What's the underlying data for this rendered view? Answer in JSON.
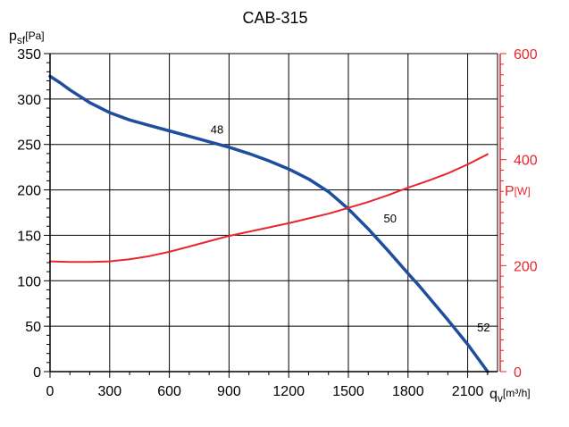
{
  "chart_data": {
    "type": "line",
    "title": "CAB-315",
    "x_axis": {
      "label_main": "q",
      "label_sub": "v",
      "label_unit": "[m³/h]",
      "range": [
        0,
        2250
      ],
      "ticks": [
        0,
        300,
        600,
        900,
        1200,
        1500,
        1800,
        2100
      ],
      "minor_step": 100
    },
    "y_axis_left": {
      "label_main": "p",
      "label_sub": "sf",
      "label_unit": "[Pa]",
      "range": [
        0,
        350
      ],
      "ticks": [
        0,
        50,
        100,
        150,
        200,
        250,
        300,
        350
      ],
      "minor_step": 10
    },
    "y_axis_right": {
      "label_main": "P",
      "label_unit": "[W]",
      "range": [
        0,
        600
      ],
      "ticks": [
        0,
        200,
        400,
        600
      ],
      "minor_step": 20,
      "color": "#e8262b"
    },
    "grid": true,
    "series": [
      {
        "axis": "left",
        "color": "#1f4e9e",
        "x": [
          0,
          50,
          100,
          200,
          300,
          400,
          500,
          600,
          700,
          800,
          900,
          1000,
          1100,
          1200,
          1300,
          1400,
          1500,
          1600,
          1700,
          1800,
          1850,
          1900,
          2000,
          2100,
          2200
        ],
        "y": [
          325,
          318,
          310,
          296,
          285,
          277,
          271,
          265,
          259,
          253,
          247,
          240,
          232,
          223,
          212,
          198,
          179,
          157,
          133,
          108,
          96,
          83,
          57,
          30,
          0
        ]
      },
      {
        "axis": "right",
        "color": "#e8262b",
        "x": [
          0,
          100,
          200,
          300,
          400,
          500,
          600,
          700,
          800,
          900,
          1000,
          1100,
          1200,
          1300,
          1400,
          1500,
          1600,
          1700,
          1800,
          1900,
          2000,
          2100,
          2200
        ],
        "y": [
          208,
          207,
          207,
          208,
          212,
          218,
          226,
          236,
          246,
          256,
          264,
          272,
          280,
          289,
          298,
          309,
          320,
          333,
          347,
          360,
          374,
          391,
          410
        ]
      }
    ],
    "annotations": [
      {
        "text": "48",
        "x": 840,
        "y": 262
      },
      {
        "text": "50",
        "x": 1710,
        "y": 164
      },
      {
        "text": "52",
        "x": 2180,
        "y": 44
      }
    ]
  }
}
